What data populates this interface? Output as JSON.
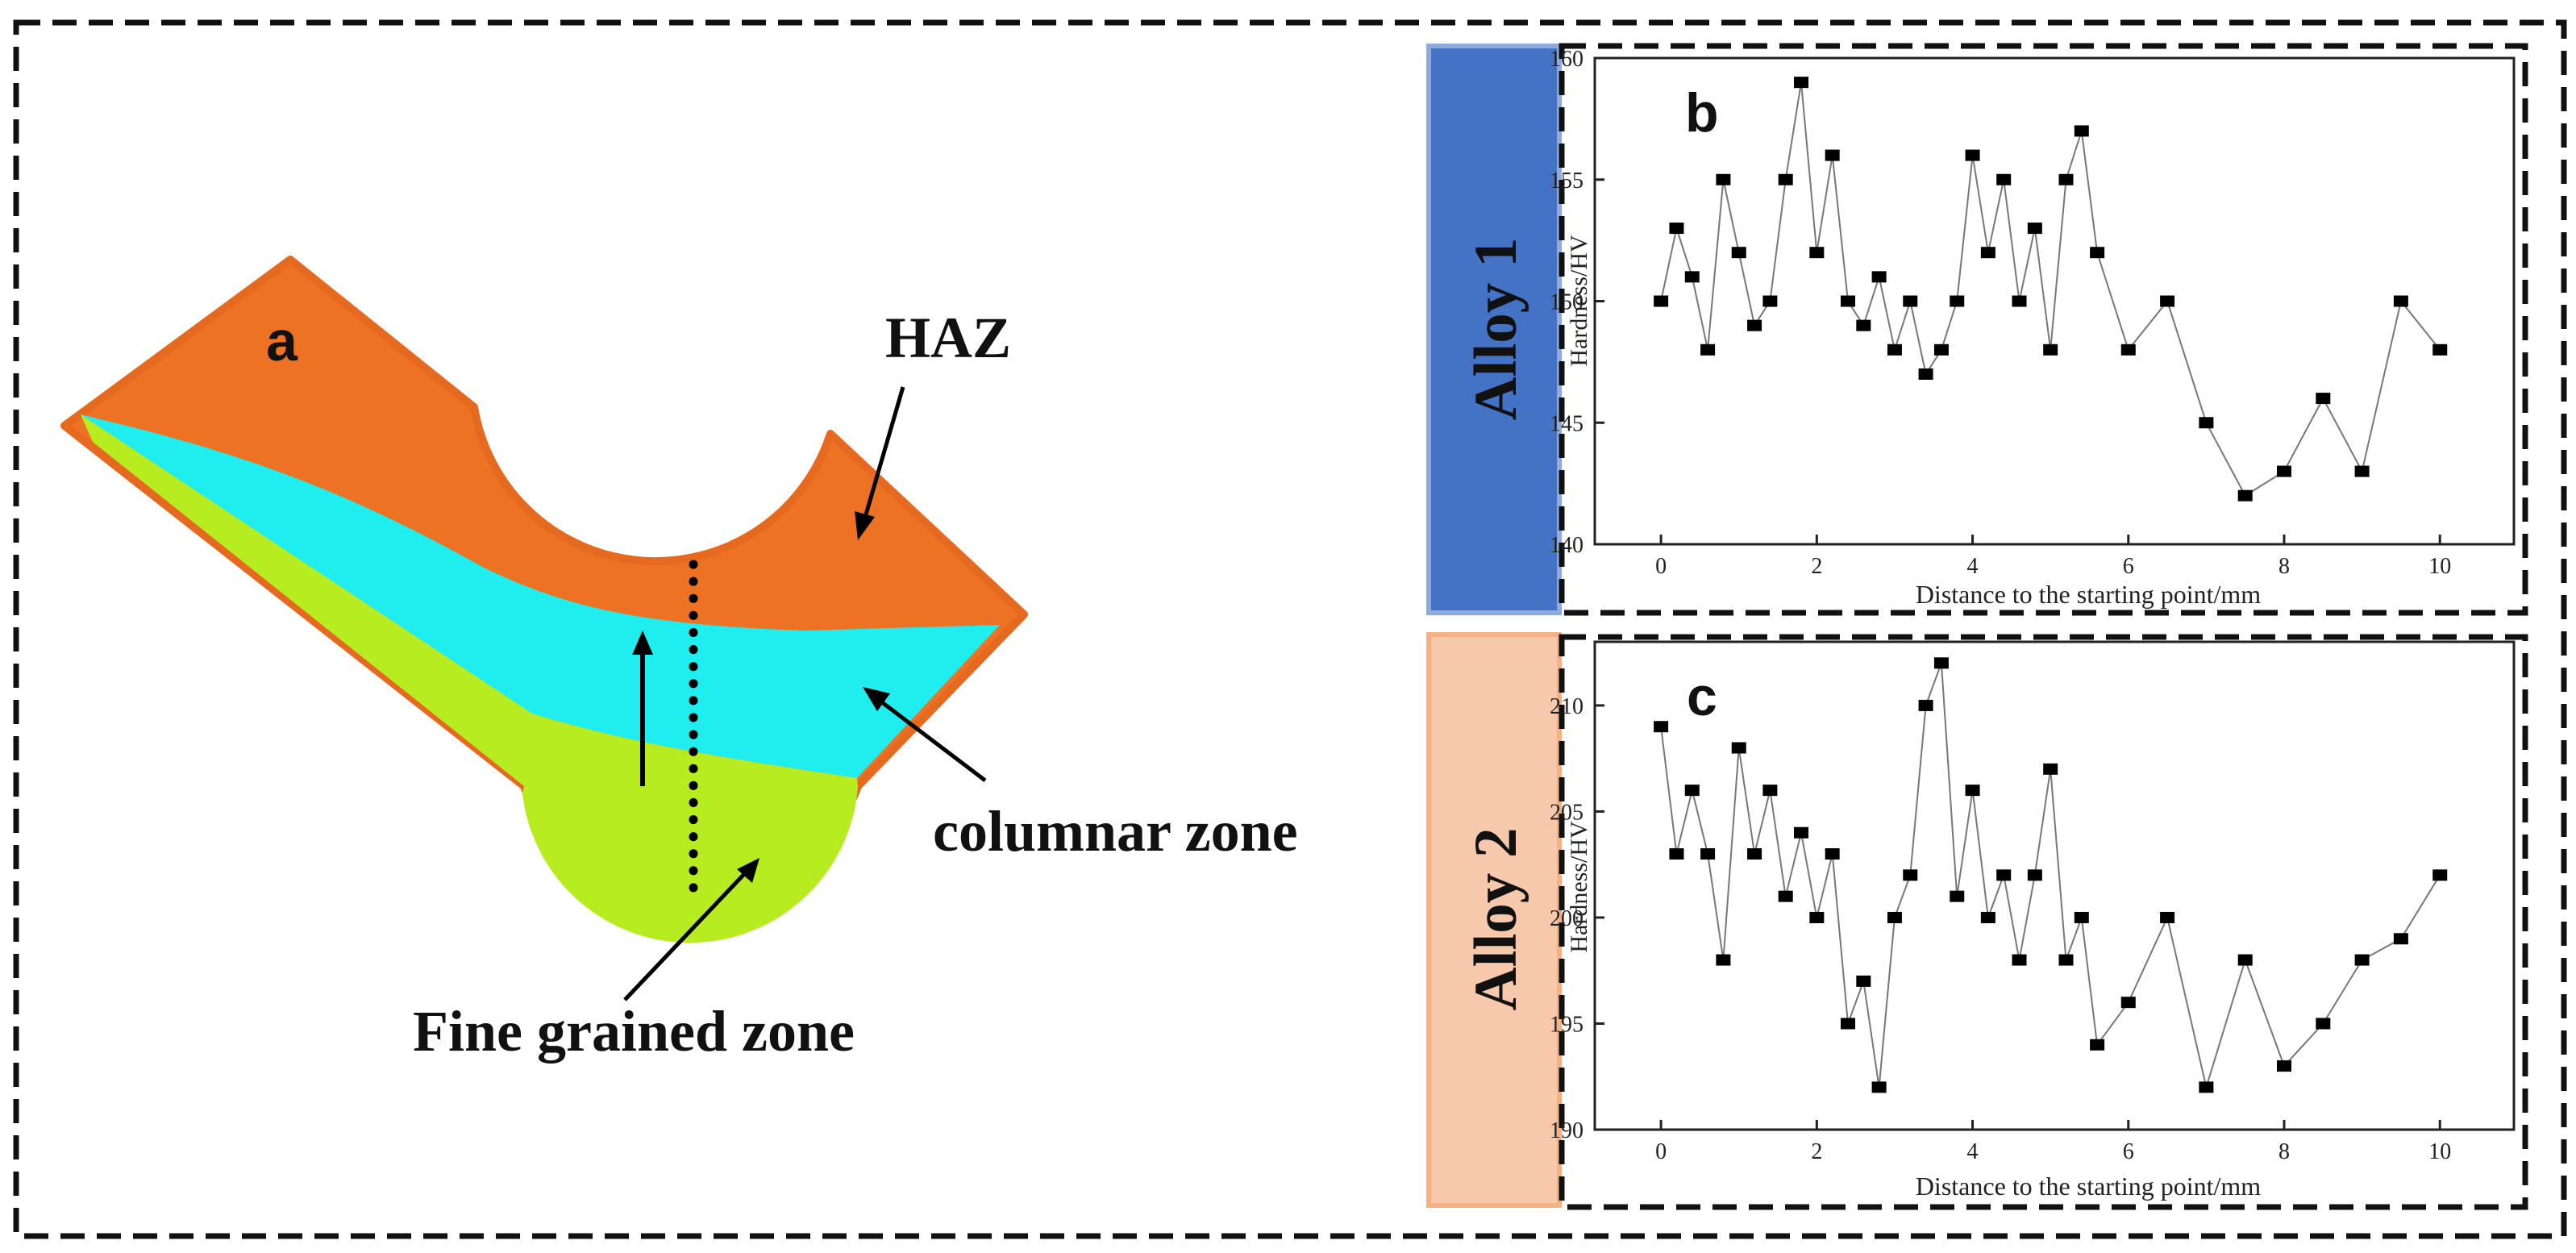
{
  "colors": {
    "haz": "#EE7224",
    "columnar": "#20EDEE",
    "fine": "#B7EC21",
    "alloy1_band": "#4472C4",
    "alloy2_band": "#F7C9AC",
    "alloy2_band_border": "#F4B183",
    "alloy1_band_border": "#8FAADC",
    "line": "#777777",
    "marker": "#000000"
  },
  "diagram": {
    "panel_label": "a",
    "labels": {
      "haz": "HAZ",
      "columnar": "columnar zone",
      "fine": "Fine grained zone"
    }
  },
  "bands": {
    "alloy1": "Alloy 1",
    "alloy2": "Alloy 2"
  },
  "chart_data": [
    {
      "type": "line",
      "panel_label": "b",
      "title": "",
      "xlabel": "Distance to the starting point/mm",
      "ylabel": "Hardness/HV",
      "xlim": [
        -0.85,
        10.95
      ],
      "ylim": [
        140,
        160
      ],
      "xticks": [
        0,
        2,
        4,
        6,
        8,
        10
      ],
      "yticks": [
        140,
        145,
        150,
        155,
        160
      ],
      "grid": false,
      "marker": "square",
      "x": [
        0,
        0.2,
        0.4,
        0.6,
        0.8,
        1.0,
        1.2,
        1.4,
        1.6,
        1.8,
        2.0,
        2.2,
        2.4,
        2.6,
        2.8,
        3.0,
        3.2,
        3.4,
        3.6,
        3.8,
        4.0,
        4.2,
        4.4,
        4.6,
        4.8,
        5.0,
        5.2,
        5.4,
        5.6,
        6.0,
        6.5,
        7.0,
        7.5,
        8.0,
        8.5,
        9.0,
        9.5,
        10.0
      ],
      "y": [
        150,
        153,
        151,
        148,
        155,
        152,
        149,
        150,
        155,
        159,
        152,
        156,
        150,
        149,
        151,
        148,
        150,
        147,
        148,
        150,
        156,
        152,
        155,
        150,
        153,
        148,
        155,
        157,
        152,
        148,
        150,
        145,
        142,
        143,
        146,
        143,
        150,
        148
      ]
    },
    {
      "type": "line",
      "panel_label": "c",
      "title": "",
      "xlabel": "Distance to the starting point/mm",
      "ylabel": "Hardness/HV",
      "xlim": [
        -0.85,
        10.95
      ],
      "ylim": [
        190,
        213
      ],
      "xticks": [
        0,
        2,
        4,
        6,
        8,
        10
      ],
      "yticks": [
        190,
        195,
        200,
        205,
        210
      ],
      "grid": false,
      "marker": "square",
      "x": [
        0,
        0.2,
        0.4,
        0.6,
        0.8,
        1.0,
        1.2,
        1.4,
        1.6,
        1.8,
        2.0,
        2.2,
        2.4,
        2.6,
        2.8,
        3.0,
        3.2,
        3.4,
        3.6,
        3.8,
        4.0,
        4.2,
        4.4,
        4.6,
        4.8,
        5.0,
        5.2,
        5.4,
        5.6,
        6.0,
        6.5,
        7.0,
        7.5,
        8.0,
        8.5,
        9.0,
        9.5,
        10.0
      ],
      "y": [
        209,
        203,
        206,
        203,
        198,
        208,
        203,
        206,
        201,
        204,
        200,
        203,
        195,
        197,
        192,
        200,
        202,
        210,
        212,
        201,
        206,
        200,
        202,
        198,
        202,
        207,
        198,
        200,
        194,
        196,
        200,
        192,
        198,
        193,
        195,
        198,
        199,
        202
      ]
    }
  ]
}
